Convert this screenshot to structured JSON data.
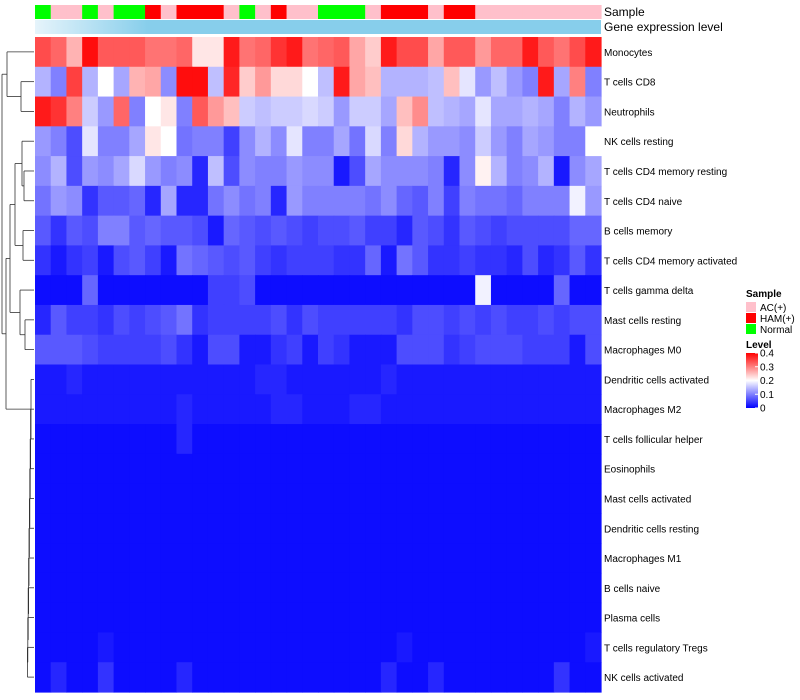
{
  "chart_data": {
    "type": "heatmap",
    "title": "",
    "annotation_labels": {
      "sample": "Sample",
      "gene_expression": "Gene expression level"
    },
    "columns_count": 36,
    "sample_groups": [
      "Normal",
      "AC(+)",
      "AC(+)",
      "Normal",
      "AC(+)",
      "Normal",
      "Normal",
      "HAM(+)",
      "AC(+)",
      "HAM(+)",
      "HAM(+)",
      "HAM(+)",
      "AC(+)",
      "Normal",
      "AC(+)",
      "HAM(+)",
      "AC(+)",
      "AC(+)",
      "Normal",
      "Normal",
      "Normal",
      "AC(+)",
      "HAM(+)",
      "HAM(+)",
      "HAM(+)",
      "AC(+)",
      "HAM(+)",
      "HAM(+)",
      "AC(+)",
      "AC(+)",
      "AC(+)",
      "AC(+)",
      "AC(+)",
      "AC(+)",
      "AC(+)",
      "AC(+)"
    ],
    "rows": [
      "Monocytes",
      "T cells CD8",
      "Neutrophils",
      "NK cells resting",
      "T cells CD4 memory resting",
      "T cells CD4 naive",
      "B cells memory",
      "T cells CD4 memory activated",
      "T cells gamma delta",
      "Mast cells resting",
      "Macrophages M0",
      "Dendritic cells activated",
      "Macrophages M2",
      "T cells follicular helper",
      "Eosinophils",
      "Mast cells activated",
      "Dendritic cells resting",
      "Macrophages M1",
      "B cells naive",
      "Plasma cells",
      "T cells regulatory  Tregs",
      "NK cells activated"
    ],
    "values": [
      [
        0.34,
        0.32,
        0.26,
        0.39,
        0.33,
        0.33,
        0.33,
        0.31,
        0.31,
        0.32,
        0.22,
        0.22,
        0.38,
        0.31,
        0.32,
        0.36,
        0.38,
        0.31,
        0.32,
        0.33,
        0.27,
        0.24,
        0.38,
        0.34,
        0.34,
        0.27,
        0.33,
        0.33,
        0.28,
        0.32,
        0.32,
        0.38,
        0.33,
        0.31,
        0.34,
        0.38
      ],
      [
        0.14,
        0.1,
        0.35,
        0.14,
        0.2,
        0.13,
        0.26,
        0.27,
        0.11,
        0.39,
        0.39,
        0.15,
        0.37,
        0.24,
        0.28,
        0.23,
        0.23,
        0.2,
        0.15,
        0.38,
        0.27,
        0.25,
        0.14,
        0.14,
        0.14,
        0.15,
        0.25,
        0.18,
        0.12,
        0.15,
        0.12,
        0.1,
        0.38,
        0.13,
        0.3,
        0.1
      ],
      [
        0.38,
        0.36,
        0.3,
        0.16,
        0.12,
        0.32,
        0.1,
        0.2,
        0.22,
        0.1,
        0.33,
        0.28,
        0.25,
        0.16,
        0.15,
        0.16,
        0.16,
        0.17,
        0.16,
        0.12,
        0.16,
        0.16,
        0.13,
        0.25,
        0.29,
        0.15,
        0.14,
        0.13,
        0.18,
        0.13,
        0.13,
        0.14,
        0.13,
        0.1,
        0.14,
        0.12
      ],
      [
        0.12,
        0.1,
        0.06,
        0.18,
        0.1,
        0.1,
        0.13,
        0.22,
        0.2,
        0.09,
        0.1,
        0.1,
        0.05,
        0.11,
        0.14,
        0.11,
        0.18,
        0.1,
        0.1,
        0.13,
        0.09,
        0.17,
        0.1,
        0.23,
        0.14,
        0.12,
        0.12,
        0.11,
        0.16,
        0.12,
        0.1,
        0.13,
        0.12,
        0.1,
        0.1,
        0.2
      ],
      [
        0.11,
        0.14,
        0.06,
        0.12,
        0.11,
        0.13,
        0.17,
        0.12,
        0.1,
        0.11,
        0.03,
        0.15,
        0.06,
        0.11,
        0.1,
        0.1,
        0.12,
        0.11,
        0.11,
        0.02,
        0.06,
        0.13,
        0.11,
        0.11,
        0.11,
        0.1,
        0.03,
        0.11,
        0.21,
        0.14,
        0.1,
        0.11,
        0.14,
        0.02,
        0.11,
        0.13
      ],
      [
        0.09,
        0.12,
        0.11,
        0.04,
        0.07,
        0.07,
        0.08,
        0.03,
        0.13,
        0.03,
        0.03,
        0.09,
        0.11,
        0.09,
        0.1,
        0.03,
        0.12,
        0.1,
        0.1,
        0.1,
        0.1,
        0.09,
        0.11,
        0.08,
        0.07,
        0.1,
        0.05,
        0.1,
        0.09,
        0.09,
        0.08,
        0.1,
        0.1,
        0.1,
        0.19,
        0.12
      ],
      [
        0.07,
        0.04,
        0.07,
        0.06,
        0.1,
        0.1,
        0.07,
        0.08,
        0.07,
        0.07,
        0.06,
        0.02,
        0.08,
        0.07,
        0.06,
        0.07,
        0.06,
        0.05,
        0.06,
        0.06,
        0.07,
        0.05,
        0.05,
        0.03,
        0.07,
        0.06,
        0.04,
        0.07,
        0.06,
        0.05,
        0.06,
        0.06,
        0.06,
        0.06,
        0.08,
        0.08
      ],
      [
        0.04,
        0.02,
        0.04,
        0.05,
        0.02,
        0.06,
        0.07,
        0.05,
        0.02,
        0.09,
        0.08,
        0.07,
        0.06,
        0.07,
        0.05,
        0.04,
        0.05,
        0.05,
        0.05,
        0.04,
        0.04,
        0.08,
        0.02,
        0.09,
        0.07,
        0.04,
        0.04,
        0.05,
        0.04,
        0.04,
        0.03,
        0.06,
        0.03,
        0.04,
        0.07,
        0.04
      ],
      [
        0.01,
        0.01,
        0.01,
        0.08,
        0.01,
        0.01,
        0.01,
        0.01,
        0.01,
        0.01,
        0.01,
        0.05,
        0.05,
        0.06,
        0.01,
        0.01,
        0.01,
        0.01,
        0.01,
        0.01,
        0.01,
        0.01,
        0.01,
        0.01,
        0.01,
        0.01,
        0.01,
        0.01,
        0.19,
        0.01,
        0.01,
        0.01,
        0.01,
        0.08,
        0.01,
        0.01
      ],
      [
        0.03,
        0.07,
        0.05,
        0.05,
        0.04,
        0.06,
        0.05,
        0.06,
        0.07,
        0.09,
        0.04,
        0.05,
        0.05,
        0.05,
        0.05,
        0.06,
        0.04,
        0.06,
        0.05,
        0.05,
        0.05,
        0.05,
        0.05,
        0.04,
        0.06,
        0.06,
        0.05,
        0.06,
        0.05,
        0.06,
        0.05,
        0.05,
        0.06,
        0.05,
        0.06,
        0.06
      ],
      [
        0.07,
        0.07,
        0.07,
        0.06,
        0.05,
        0.05,
        0.05,
        0.05,
        0.06,
        0.04,
        0.02,
        0.06,
        0.06,
        0.02,
        0.02,
        0.04,
        0.05,
        0.02,
        0.05,
        0.04,
        0.02,
        0.02,
        0.02,
        0.06,
        0.06,
        0.06,
        0.04,
        0.05,
        0.06,
        0.06,
        0.06,
        0.05,
        0.05,
        0.05,
        0.02,
        0.06
      ],
      [
        0.02,
        0.02,
        0.03,
        0.02,
        0.02,
        0.02,
        0.02,
        0.02,
        0.02,
        0.02,
        0.02,
        0.02,
        0.02,
        0.02,
        0.03,
        0.03,
        0.02,
        0.02,
        0.02,
        0.02,
        0.02,
        0.02,
        0.03,
        0.02,
        0.02,
        0.02,
        0.02,
        0.02,
        0.02,
        0.02,
        0.02,
        0.02,
        0.02,
        0.02,
        0.02,
        0.02
      ],
      [
        0.02,
        0.02,
        0.02,
        0.02,
        0.02,
        0.02,
        0.02,
        0.02,
        0.02,
        0.03,
        0.02,
        0.02,
        0.02,
        0.02,
        0.02,
        0.03,
        0.03,
        0.02,
        0.02,
        0.02,
        0.03,
        0.03,
        0.02,
        0.02,
        0.02,
        0.02,
        0.02,
        0.02,
        0.02,
        0.02,
        0.02,
        0.02,
        0.02,
        0.02,
        0.02,
        0.02
      ],
      [
        0.01,
        0.01,
        0.01,
        0.01,
        0.01,
        0.01,
        0.01,
        0.01,
        0.01,
        0.03,
        0.01,
        0.01,
        0.01,
        0.01,
        0.01,
        0.01,
        0.01,
        0.01,
        0.01,
        0.01,
        0.01,
        0.01,
        0.01,
        0.01,
        0.01,
        0.01,
        0.01,
        0.01,
        0.01,
        0.01,
        0.01,
        0.01,
        0.01,
        0.01,
        0.01,
        0.01
      ],
      [
        0.01,
        0.01,
        0.01,
        0.01,
        0.01,
        0.01,
        0.01,
        0.01,
        0.01,
        0.01,
        0.01,
        0.01,
        0.01,
        0.01,
        0.01,
        0.01,
        0.01,
        0.01,
        0.01,
        0.01,
        0.01,
        0.01,
        0.01,
        0.01,
        0.01,
        0.01,
        0.01,
        0.01,
        0.01,
        0.01,
        0.01,
        0.01,
        0.01,
        0.01,
        0.01,
        0.01
      ],
      [
        0.01,
        0.01,
        0.01,
        0.01,
        0.01,
        0.01,
        0.01,
        0.01,
        0.01,
        0.01,
        0.01,
        0.01,
        0.01,
        0.01,
        0.01,
        0.01,
        0.01,
        0.01,
        0.01,
        0.01,
        0.01,
        0.01,
        0.01,
        0.01,
        0.01,
        0.01,
        0.01,
        0.01,
        0.01,
        0.01,
        0.01,
        0.01,
        0.01,
        0.01,
        0.01,
        0.01
      ],
      [
        0.01,
        0.01,
        0.01,
        0.01,
        0.01,
        0.01,
        0.01,
        0.01,
        0.01,
        0.01,
        0.01,
        0.01,
        0.01,
        0.01,
        0.01,
        0.01,
        0.01,
        0.01,
        0.01,
        0.01,
        0.01,
        0.01,
        0.01,
        0.01,
        0.01,
        0.01,
        0.01,
        0.01,
        0.01,
        0.01,
        0.01,
        0.01,
        0.01,
        0.01,
        0.01,
        0.01
      ],
      [
        0.01,
        0.01,
        0.01,
        0.01,
        0.01,
        0.01,
        0.01,
        0.01,
        0.01,
        0.01,
        0.01,
        0.01,
        0.01,
        0.01,
        0.01,
        0.01,
        0.01,
        0.01,
        0.01,
        0.01,
        0.01,
        0.01,
        0.01,
        0.01,
        0.01,
        0.01,
        0.01,
        0.01,
        0.01,
        0.01,
        0.01,
        0.01,
        0.01,
        0.01,
        0.01,
        0.01
      ],
      [
        0.01,
        0.01,
        0.01,
        0.01,
        0.01,
        0.01,
        0.01,
        0.01,
        0.01,
        0.01,
        0.01,
        0.01,
        0.01,
        0.01,
        0.01,
        0.01,
        0.01,
        0.01,
        0.01,
        0.01,
        0.01,
        0.01,
        0.01,
        0.01,
        0.01,
        0.01,
        0.01,
        0.01,
        0.01,
        0.01,
        0.01,
        0.01,
        0.01,
        0.01,
        0.01,
        0.01
      ],
      [
        0.01,
        0.01,
        0.01,
        0.01,
        0.01,
        0.01,
        0.01,
        0.01,
        0.01,
        0.01,
        0.01,
        0.01,
        0.01,
        0.01,
        0.01,
        0.01,
        0.01,
        0.01,
        0.01,
        0.01,
        0.01,
        0.01,
        0.01,
        0.01,
        0.01,
        0.01,
        0.01,
        0.01,
        0.01,
        0.01,
        0.01,
        0.01,
        0.01,
        0.01,
        0.01,
        0.01
      ],
      [
        0.01,
        0.01,
        0.01,
        0.01,
        0.02,
        0.01,
        0.01,
        0.01,
        0.01,
        0.01,
        0.01,
        0.01,
        0.01,
        0.01,
        0.01,
        0.01,
        0.01,
        0.01,
        0.01,
        0.01,
        0.01,
        0.01,
        0.01,
        0.02,
        0.01,
        0.01,
        0.01,
        0.01,
        0.01,
        0.01,
        0.01,
        0.01,
        0.01,
        0.01,
        0.01,
        0.02
      ],
      [
        0.01,
        0.03,
        0.01,
        0.01,
        0.04,
        0.01,
        0.01,
        0.01,
        0.01,
        0.03,
        0.01,
        0.01,
        0.01,
        0.01,
        0.01,
        0.01,
        0.01,
        0.01,
        0.01,
        0.01,
        0.01,
        0.01,
        0.03,
        0.01,
        0.01,
        0.03,
        0.01,
        0.01,
        0.01,
        0.01,
        0.01,
        0.01,
        0.01,
        0.04,
        0.01,
        0.01
      ]
    ],
    "color_scale": {
      "low": "#0000ff",
      "mid": "#ffffff",
      "high": "#ff0000",
      "min": 0,
      "mid_value": 0.2,
      "max": 0.4
    },
    "legend": {
      "sample_title": "Sample",
      "sample_items": [
        {
          "label": "AC(+)",
          "color": "#ffc0cb"
        },
        {
          "label": "HAM(+)",
          "color": "#ff0000"
        },
        {
          "label": "Normal",
          "color": "#00ff00"
        }
      ],
      "level_title": "Level",
      "level_ticks": [
        "0.4",
        "0.3",
        "0.2",
        "0.1",
        "0"
      ],
      "level_tick_values": [
        0.4,
        0.3,
        0.2,
        0.1,
        0
      ],
      "placement": "right"
    },
    "expression_bar_color": "#87ceeb"
  }
}
